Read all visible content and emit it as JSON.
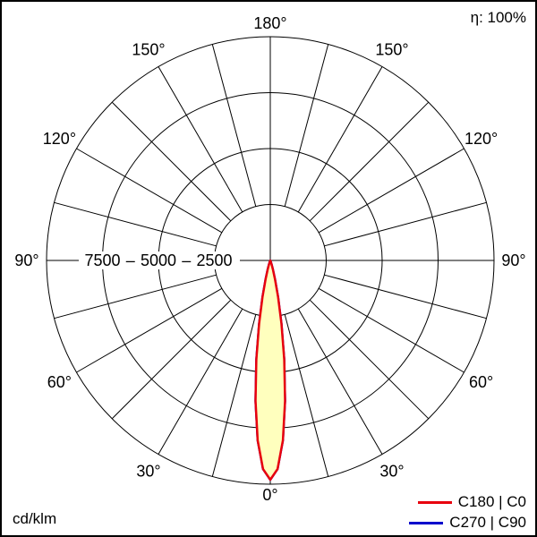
{
  "chart_data": {
    "type": "polar",
    "subtype": "luminous-intensity-distribution",
    "efficiency_label": "η: 100%",
    "unit_label": "cd/klm",
    "angle_tick_suffix": "°",
    "angle_ticks_deg": [
      0,
      30,
      60,
      90,
      120,
      150,
      180
    ],
    "spoke_step_deg": 15,
    "radial_max": 10000,
    "radial_rings": [
      2500,
      5000,
      7500,
      10000
    ],
    "radial_tick_labels": [
      "7500",
      "5000",
      "2500"
    ],
    "radial_tick_values": [
      7500,
      5000,
      2500
    ],
    "radial_tick_separator": "–",
    "grid_color": "#000000",
    "series": [
      {
        "name": "C180 | C0",
        "color": "#e8000d",
        "fill": "#ffffbe",
        "symmetric": true,
        "angles_deg": [
          0,
          2,
          4,
          6,
          8,
          10,
          12,
          14,
          16,
          18,
          20,
          22,
          24
        ],
        "values": [
          9800,
          9330,
          8060,
          6310,
          4480,
          2880,
          1670,
          880,
          415,
          175,
          70,
          25,
          0
        ]
      },
      {
        "name": "C270 | C90",
        "color": "#0000cc",
        "fill": "#ffffbe",
        "symmetric": true,
        "angles_deg": [
          0,
          2,
          4,
          6,
          8,
          10,
          12,
          14,
          16,
          18,
          20,
          22,
          24
        ],
        "values": [
          9800,
          9330,
          8060,
          6310,
          4480,
          2880,
          1670,
          880,
          415,
          175,
          70,
          25,
          0
        ]
      }
    ],
    "legend": [
      {
        "label": "C180 | C0",
        "color": "#e8000d"
      },
      {
        "label": "C270 | C90",
        "color": "#0000cc"
      }
    ]
  }
}
